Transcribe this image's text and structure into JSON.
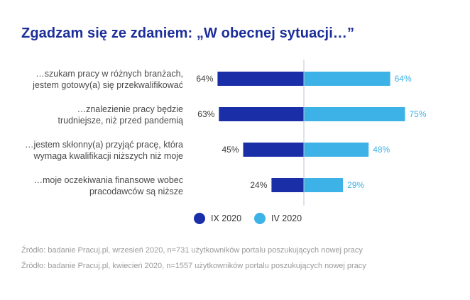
{
  "title": "Zgadzam się ze zdaniem: „W obecnej sytuacji…”",
  "colors": {
    "left": "#1a2ea8",
    "right": "#3db2e6",
    "axis": "#bfc3d6",
    "title": "#1c2e9a"
  },
  "chart_data": {
    "type": "bar",
    "orientation": "horizontal-diverging",
    "categories": [
      [
        "…szukam pracy w różnych branżach,",
        "jestem gotowy(a) się przekwalifikować"
      ],
      [
        "…znalezienie pracy będzie",
        "trudniejsze, niż przed pandemią"
      ],
      [
        "…jestem skłonny(a) przyjąć pracę, która",
        "wymaga kwalifikacji niższych niż moje"
      ],
      [
        "…moje oczekiwania finansowe wobec",
        "pracodawców są niższe"
      ]
    ],
    "series": [
      {
        "name": "IX 2020",
        "values": [
          64,
          63,
          45,
          24
        ],
        "labels": [
          "64%",
          "63%",
          "45%",
          "24%"
        ]
      },
      {
        "name": "IV 2020",
        "values": [
          64,
          75,
          48,
          29
        ],
        "labels": [
          "64%",
          "75%",
          "48%",
          "29%"
        ]
      }
    ],
    "xlim": [
      0,
      100
    ],
    "legend_position": "bottom"
  },
  "sources": [
    "Źródło: badanie Pracuj.pl, wrzesień 2020, n=731 użytkowników portalu poszukujących nowej pracy",
    "Źródło: badanie Pracuj.pl, kwiecień 2020, n=1557 użytkowników portalu poszukujących nowej pracy"
  ]
}
